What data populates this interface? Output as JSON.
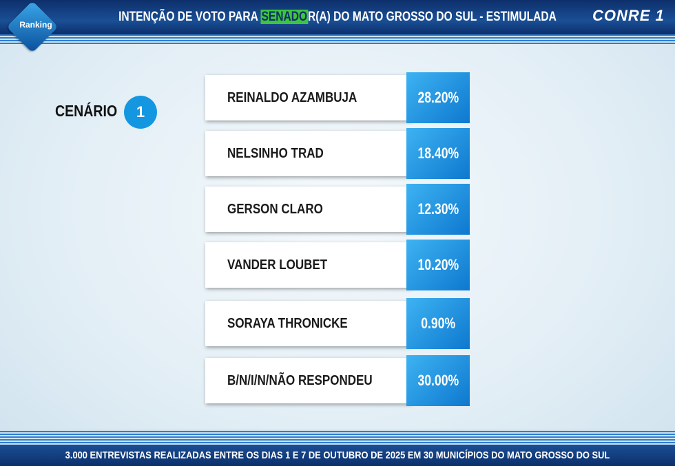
{
  "header": {
    "logo_left": "Ranking",
    "title_before": "INTENÇÃO DE VOTO PARA ",
    "title_highlight": "SENADO",
    "title_after": "R(A) DO MATO GROSSO DO SUL - ESTIMULADA",
    "logo_right": "CONRE 1"
  },
  "scenario": {
    "label": "CENÁRIO",
    "number": "1"
  },
  "results": [
    {
      "name": "REINALDO AZAMBUJA",
      "value": "28.20%"
    },
    {
      "name": "NELSINHO TRAD",
      "value": "18.40%"
    },
    {
      "name": "GERSON CLARO",
      "value": "12.30%"
    },
    {
      "name": "VANDER LOUBET",
      "value": "10.20%"
    },
    {
      "name": "SORAYA THRONICKE",
      "value": "0.90%"
    },
    {
      "name": "B/N/I/N/NÃO RESPONDEU",
      "value": "30.00%"
    }
  ],
  "footer": "3.000 ENTREVISTAS REALIZADAS ENTRE OS DIAS 1 E 7 DE OUTUBRO DE 2025 EM 30 MUNICÍPIOS DO MATO GROSSO DO SUL"
}
